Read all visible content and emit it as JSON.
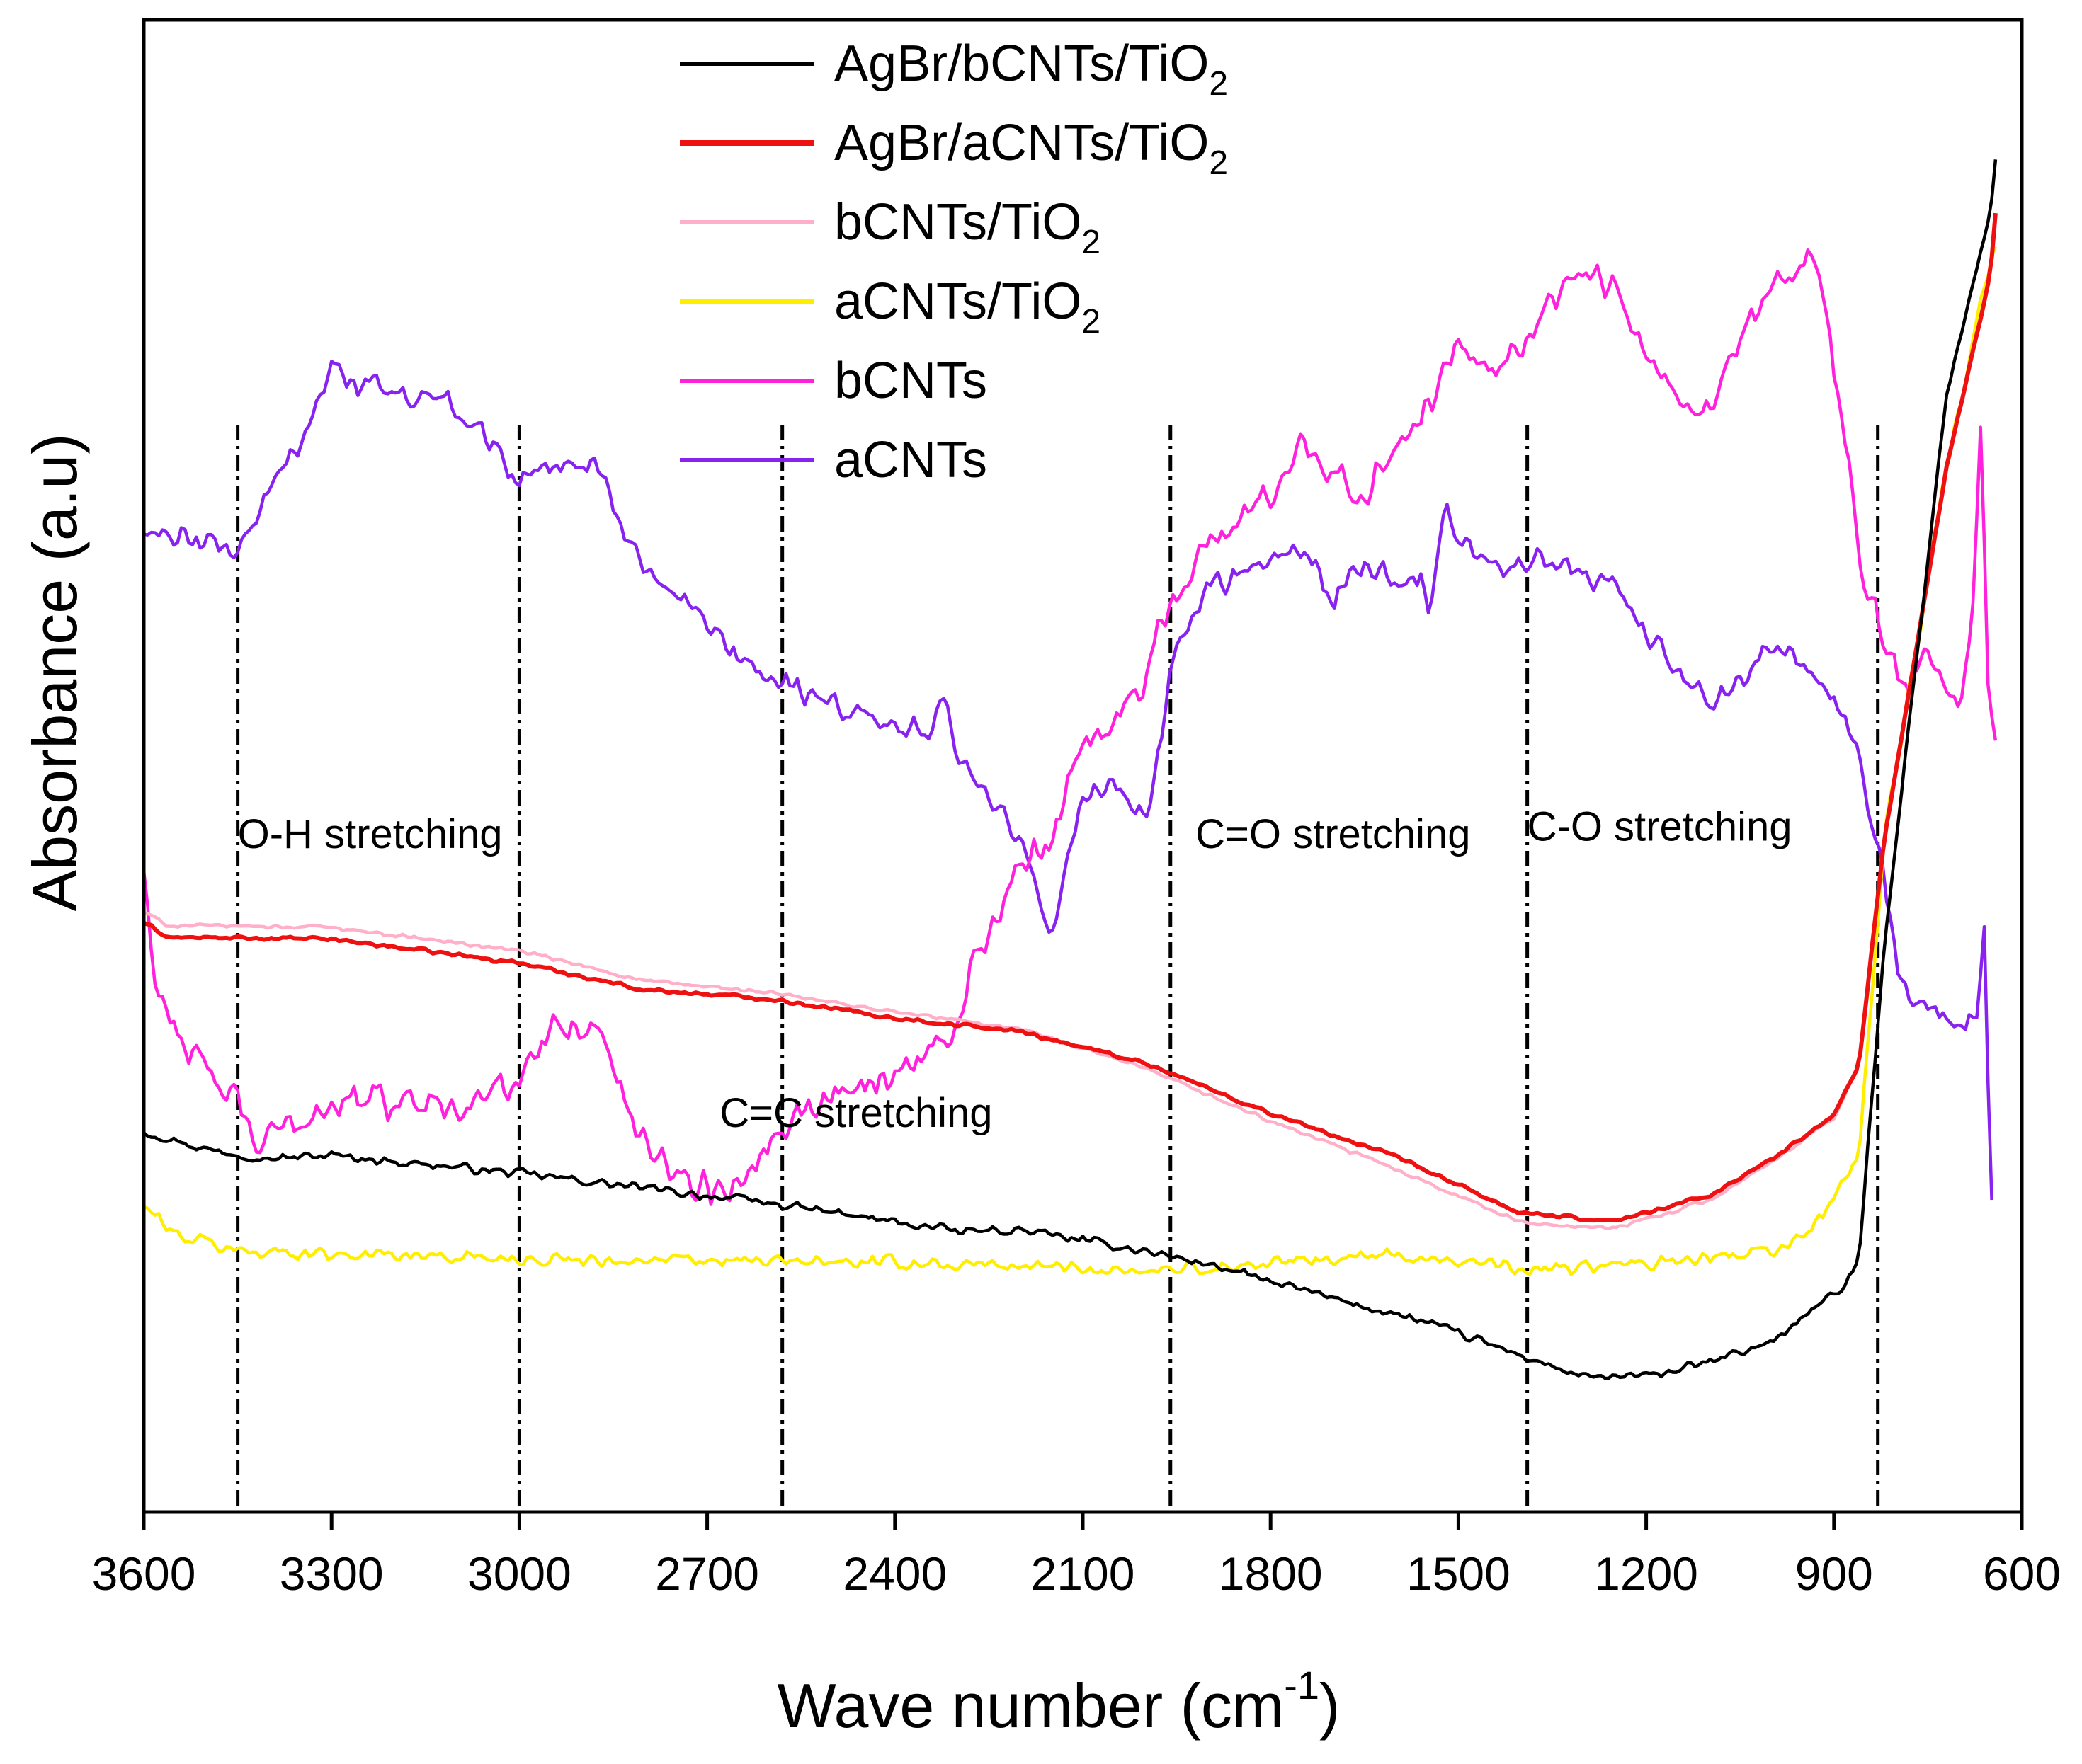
{
  "chart_data": {
    "type": "line",
    "title": "",
    "xlabel": "Wave number (cm",
    "xlabel_sup": "-1",
    "xlabel_close": ")",
    "ylabel": "Absorbance (a.u)",
    "xlim": [
      3600,
      600
    ],
    "x_reversed": true,
    "ylim": [
      0,
      100
    ],
    "y_ticks_shown": false,
    "x_ticks": [
      3600,
      3300,
      3000,
      2700,
      2400,
      2100,
      1800,
      1500,
      1200,
      900,
      600
    ],
    "legend_position": "top-center",
    "grid": false,
    "series": [
      {
        "name": "AgBr/bCNTs/TiO",
        "sub": "2",
        "color": "#000000",
        "noise": 0.35,
        "points": [
          [
            3600,
            25.5
          ],
          [
            3500,
            24.3
          ],
          [
            3400,
            23.7
          ],
          [
            3300,
            23.9
          ],
          [
            3000,
            22.7
          ],
          [
            2800,
            21.7
          ],
          [
            2600,
            20.7
          ],
          [
            2300,
            18.8
          ],
          [
            2200,
            18.9
          ],
          [
            2000,
            17.5
          ],
          [
            1900,
            16.6
          ],
          [
            1700,
            14.3
          ],
          [
            1550,
            12.7
          ],
          [
            1400,
            10.5
          ],
          [
            1300,
            9.0
          ],
          [
            1200,
            9.1
          ],
          [
            1100,
            10.0
          ],
          [
            1000,
            11.4
          ],
          [
            940,
            13.4
          ],
          [
            880,
            15.2
          ],
          [
            860,
            17.0
          ],
          [
            820,
            38.0
          ],
          [
            720,
            75.0
          ],
          [
            650,
            87.0
          ],
          [
            640,
            91.5
          ]
        ]
      },
      {
        "name": "AgBr/aCNTs/TiO",
        "sub": "2",
        "color": "#ee1111",
        "noise": 0.15,
        "points": [
          [
            3600,
            39.5
          ],
          [
            3560,
            38.5
          ],
          [
            3300,
            38.4
          ],
          [
            3000,
            36.8
          ],
          [
            2800,
            35.0
          ],
          [
            2600,
            34.4
          ],
          [
            2400,
            33.1
          ],
          [
            2200,
            32.2
          ],
          [
            2000,
            30.1
          ],
          [
            1800,
            26.7
          ],
          [
            1600,
            23.8
          ],
          [
            1400,
            20.0
          ],
          [
            1250,
            19.5
          ],
          [
            1100,
            21.2
          ],
          [
            1000,
            23.6
          ],
          [
            900,
            26.6
          ],
          [
            860,
            30.0
          ],
          [
            820,
            45.0
          ],
          [
            720,
            70.0
          ],
          [
            650,
            83.0
          ],
          [
            640,
            88.0
          ]
        ]
      },
      {
        "name": "bCNTs/TiO",
        "sub": "2",
        "color": "#ffb0c8",
        "noise": 0.15,
        "points": [
          [
            3600,
            40.2
          ],
          [
            3560,
            39.3
          ],
          [
            3300,
            39.2
          ],
          [
            3000,
            37.6
          ],
          [
            2800,
            35.6
          ],
          [
            2600,
            34.8
          ],
          [
            2400,
            33.5
          ],
          [
            2200,
            32.4
          ],
          [
            2000,
            29.7
          ],
          [
            1800,
            26.2
          ],
          [
            1600,
            23.0
          ],
          [
            1400,
            19.4
          ],
          [
            1250,
            19.0
          ],
          [
            1100,
            20.9
          ],
          [
            1000,
            23.4
          ],
          [
            900,
            26.4
          ],
          [
            860,
            30.0
          ],
          [
            820,
            45.0
          ],
          [
            720,
            70.0
          ],
          [
            650,
            83.0
          ],
          [
            640,
            88.0
          ]
        ]
      },
      {
        "name": "aCNTs/TiO",
        "sub": "2",
        "color": "#ffee00",
        "noise": 0.55,
        "points": [
          [
            3600,
            20.5
          ],
          [
            3550,
            18.6
          ],
          [
            3450,
            17.5
          ],
          [
            3000,
            17.0
          ],
          [
            2700,
            16.8
          ],
          [
            2400,
            16.7
          ],
          [
            2200,
            16.5
          ],
          [
            2000,
            16.2
          ],
          [
            1800,
            16.6
          ],
          [
            1700,
            17.0
          ],
          [
            1600,
            17.2
          ],
          [
            1500,
            16.9
          ],
          [
            1400,
            16.2
          ],
          [
            1200,
            16.6
          ],
          [
            1000,
            17.4
          ],
          [
            950,
            18.5
          ],
          [
            900,
            21.0
          ],
          [
            860,
            24.0
          ],
          [
            820,
            45.0
          ],
          [
            720,
            70.0
          ],
          [
            650,
            84.0
          ],
          [
            640,
            84.5
          ]
        ]
      },
      {
        "name": "bCNTs",
        "sub": "",
        "color": "#ff22dd",
        "noise": 1.4,
        "points": [
          [
            3600,
            43.0
          ],
          [
            3580,
            35.0
          ],
          [
            3540,
            32.0
          ],
          [
            3500,
            29.0
          ],
          [
            3450,
            27.5
          ],
          [
            3420,
            24.5
          ],
          [
            3300,
            27.5
          ],
          [
            3100,
            27.5
          ],
          [
            3000,
            28.5
          ],
          [
            2950,
            32.5
          ],
          [
            2920,
            33.0
          ],
          [
            2860,
            31.5
          ],
          [
            2820,
            26.0
          ],
          [
            2780,
            24.0
          ],
          [
            2720,
            22.0
          ],
          [
            2660,
            21.5
          ],
          [
            2600,
            25.5
          ],
          [
            2500,
            28.0
          ],
          [
            2400,
            29.5
          ],
          [
            2300,
            32.0
          ],
          [
            2280,
            36.0
          ],
          [
            2200,
            43.0
          ],
          [
            2150,
            45.0
          ],
          [
            2100,
            52.0
          ],
          [
            2050,
            53.0
          ],
          [
            2000,
            56.0
          ],
          [
            1950,
            62.0
          ],
          [
            1900,
            65.0
          ],
          [
            1800,
            68.0
          ],
          [
            1750,
            72.0
          ],
          [
            1650,
            68.0
          ],
          [
            1600,
            72.0
          ],
          [
            1560,
            73.0
          ],
          [
            1500,
            79.0
          ],
          [
            1450,
            77.0
          ],
          [
            1400,
            78.0
          ],
          [
            1300,
            84.0
          ],
          [
            1250,
            82.0
          ],
          [
            1200,
            77.0
          ],
          [
            1150,
            74.0
          ],
          [
            1100,
            73.5
          ],
          [
            1050,
            78.0
          ],
          [
            1000,
            82.0
          ],
          [
            950,
            83.0
          ],
          [
            930,
            84.5
          ],
          [
            900,
            77.0
          ],
          [
            860,
            64.0
          ],
          [
            820,
            58.5
          ],
          [
            780,
            54.0
          ],
          [
            760,
            58.0
          ],
          [
            730,
            56.0
          ],
          [
            700,
            53.0
          ],
          [
            680,
            60.0
          ],
          [
            665,
            74.0
          ],
          [
            655,
            57.0
          ],
          [
            640,
            51.0
          ]
        ]
      },
      {
        "name": "aCNTs",
        "sub": "",
        "color": "#8822ee",
        "noise": 1.1,
        "points": [
          [
            3600,
            65.5
          ],
          [
            3450,
            64.5
          ],
          [
            3350,
            72.0
          ],
          [
            3300,
            76.5
          ],
          [
            3250,
            75.5
          ],
          [
            3100,
            74.0
          ],
          [
            3050,
            72.0
          ],
          [
            3000,
            69.0
          ],
          [
            2950,
            70.5
          ],
          [
            2880,
            70.0
          ],
          [
            2820,
            65.0
          ],
          [
            2750,
            61.0
          ],
          [
            2650,
            57.0
          ],
          [
            2550,
            55.0
          ],
          [
            2450,
            53.5
          ],
          [
            2400,
            53.0
          ],
          [
            2350,
            52.0
          ],
          [
            2320,
            54.0
          ],
          [
            2300,
            51.0
          ],
          [
            2250,
            48.0
          ],
          [
            2200,
            45.0
          ],
          [
            2150,
            38.0
          ],
          [
            2120,
            45.0
          ],
          [
            2080,
            49.0
          ],
          [
            2050,
            48.5
          ],
          [
            2030,
            47.0
          ],
          [
            2000,
            46.0
          ],
          [
            1950,
            58.0
          ],
          [
            1900,
            62.0
          ],
          [
            1800,
            64.0
          ],
          [
            1750,
            65.0
          ],
          [
            1700,
            61.0
          ],
          [
            1650,
            64.0
          ],
          [
            1600,
            62.0
          ],
          [
            1560,
            63.0
          ],
          [
            1550,
            60.0
          ],
          [
            1520,
            67.0
          ],
          [
            1450,
            63.0
          ],
          [
            1350,
            64.0
          ],
          [
            1250,
            62.0
          ],
          [
            1200,
            59.0
          ],
          [
            1150,
            56.0
          ],
          [
            1100,
            54.0
          ],
          [
            1050,
            56.0
          ],
          [
            1000,
            57.5
          ],
          [
            950,
            57.0
          ],
          [
            900,
            55.0
          ],
          [
            860,
            50.0
          ],
          [
            820,
            43.0
          ],
          [
            800,
            36.0
          ],
          [
            760,
            34.0
          ],
          [
            720,
            33.0
          ],
          [
            690,
            32.5
          ],
          [
            670,
            33.0
          ],
          [
            660,
            39.0
          ],
          [
            655,
            30.0
          ],
          [
            645,
            16.0
          ]
        ]
      }
    ],
    "reference_lines": [
      3450,
      3000,
      2580,
      1960,
      1390,
      830
    ],
    "annotations": [
      {
        "text": "O-H stretching",
        "x": 3450,
        "y": 44.5
      },
      {
        "text": "C=C stretching",
        "x": 2680,
        "y": 25.8
      },
      {
        "text": "C=O stretching",
        "x": 1920,
        "y": 44.5
      },
      {
        "text": "C-O stretching",
        "x": 1390,
        "y": 45.0
      }
    ]
  }
}
